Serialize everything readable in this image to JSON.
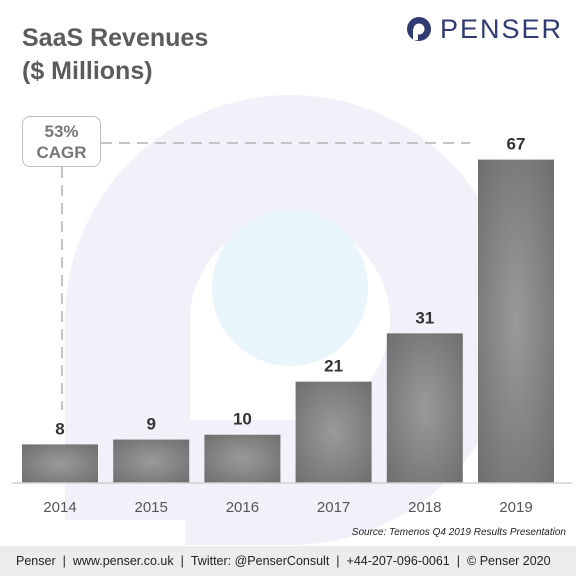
{
  "header": {
    "title_line1": "SaaS Revenues",
    "title_line2": "($ Millions)",
    "brand": "PENSER",
    "brand_color": "#2f3b72"
  },
  "annotation": {
    "line1": "53%",
    "line2": "CAGR"
  },
  "chart_data": {
    "type": "bar",
    "title": "SaaS Revenues ($ Millions)",
    "categories": [
      "2014",
      "2015",
      "2016",
      "2017",
      "2018",
      "2019"
    ],
    "values": [
      8,
      9,
      10,
      21,
      31,
      67
    ],
    "ylim": [
      0,
      75
    ],
    "grid": false,
    "data_labels": true,
    "bar_color": "#8c8c8c",
    "annotation": "53% CAGR"
  },
  "source": "Source: Temenos Q4 2019 Results Presentation",
  "footer": {
    "items": [
      "Penser",
      "www.penser.co.uk",
      "Twitter: @PenserConsult",
      "+44-207-096-0061",
      "© Penser 2020"
    ]
  }
}
